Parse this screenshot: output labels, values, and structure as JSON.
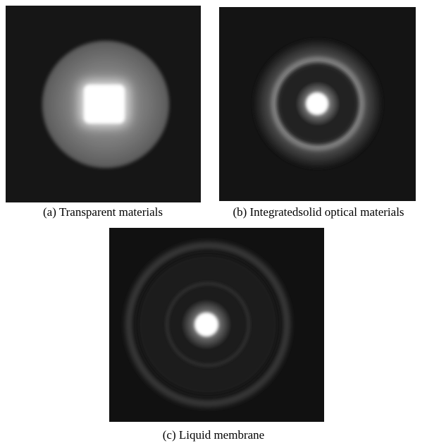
{
  "figure": {
    "panels": [
      {
        "caption": "(a) Transparent materials"
      },
      {
        "caption": "(b) Integratedsolid optical materials"
      },
      {
        "caption": "(c) Liquid membrane"
      }
    ]
  }
}
